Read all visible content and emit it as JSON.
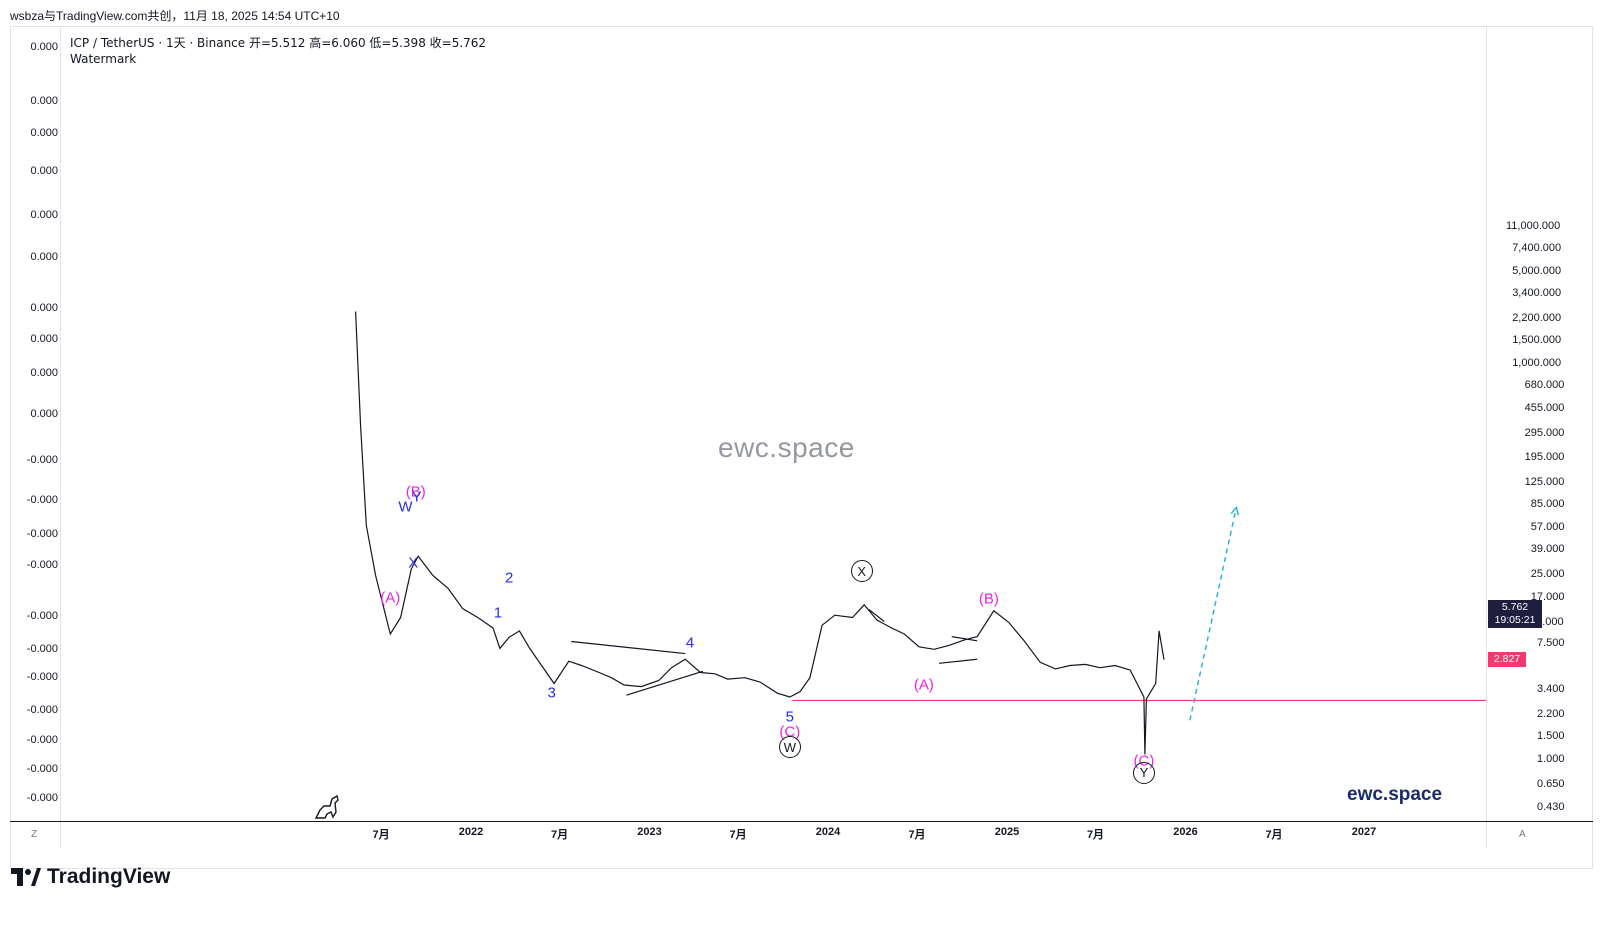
{
  "header": {
    "caption": "wsbza与TradingView.com共创，11月 18, 2025 14:54 UTC+10"
  },
  "legend": {
    "line1": "ICP / TetherUS · 1天 · Binance  开=5.512  高=6.060  低=5.398  收=5.762",
    "line2": "Watermark"
  },
  "chart_data": {
    "type": "line",
    "title": "ICP / TetherUS · 1天 · Binance",
    "scale": "log",
    "ohlc": {
      "open": 5.512,
      "high": 6.06,
      "low": 5.398,
      "close": 5.762
    },
    "left_axis_ticks": [
      "0.000",
      "0.000",
      "0.000",
      "0.000",
      "0.000",
      "0.000",
      "0.000",
      "0.000",
      "0.000",
      "0.000",
      "-0.000",
      "-0.000",
      "-0.000",
      "-0.000",
      "-0.000",
      "-0.000",
      "-0.000",
      "-0.000",
      "-0.000",
      "-0.000",
      "-0.000"
    ],
    "right_axis_ticks": [
      "11,000.000",
      "7,400.000",
      "5,000.000",
      "3,400.000",
      "2,200.000",
      "1,500.000",
      "1,000.000",
      "680.000",
      "455.000",
      "295.000",
      "195.000",
      "125.000",
      "85.000",
      "57.000",
      "39.000",
      "25.000",
      "17.000",
      "11.000",
      "7.500",
      "3.400",
      "2.200",
      "1.500",
      "1.000",
      "0.650",
      "0.430"
    ],
    "x_ticks": [
      "7月",
      "2022",
      "7月",
      "2023",
      "7月",
      "2024",
      "7月",
      "2025",
      "7月",
      "2026",
      "7月",
      "2027"
    ],
    "x": [
      "2021-05-10",
      "2021-05-20",
      "2021-06-01",
      "2021-06-20",
      "2021-07-20",
      "2021-08-10",
      "2021-09-01",
      "2021-09-15",
      "2021-10-15",
      "2021-11-15",
      "2021-12-15",
      "2022-01-15",
      "2022-02-15",
      "2022-03-01",
      "2022-03-20",
      "2022-04-10",
      "2022-05-01",
      "2022-06-01",
      "2022-06-20",
      "2022-07-20",
      "2022-08-15",
      "2022-09-20",
      "2022-10-15",
      "2022-11-10",
      "2022-12-15",
      "2023-01-20",
      "2023-02-15",
      "2023-03-15",
      "2023-04-15",
      "2023-05-15",
      "2023-06-10",
      "2023-07-15",
      "2023-08-15",
      "2023-09-20",
      "2023-10-15",
      "2023-11-05",
      "2023-11-25",
      "2023-12-20",
      "2024-01-15",
      "2024-02-20",
      "2024-03-15",
      "2024-04-10",
      "2024-05-10",
      "2024-06-05",
      "2024-07-05",
      "2024-08-05",
      "2024-09-05",
      "2024-10-05",
      "2024-11-01",
      "2024-12-05",
      "2025-01-05",
      "2025-02-05",
      "2025-03-10",
      "2025-04-10",
      "2025-05-10",
      "2025-06-10",
      "2025-07-10",
      "2025-08-10",
      "2025-09-10",
      "2025-10-08",
      "2025-10-10",
      "2025-10-13",
      "2025-10-20",
      "2025-11-01",
      "2025-11-08",
      "2025-11-18"
    ],
    "y": [
      2500,
      350,
      60,
      25,
      9,
      12,
      28,
      35,
      25,
      20,
      14,
      12,
      10,
      7,
      8.5,
      9.5,
      7,
      4.8,
      3.8,
      5.6,
      5.2,
      4.6,
      4.2,
      3.7,
      3.6,
      4.0,
      5.0,
      5.8,
      4.6,
      4.5,
      4.1,
      4.2,
      3.9,
      3.2,
      3.0,
      3.3,
      4.2,
      10.5,
      12.5,
      12.0,
      15.0,
      11.5,
      10.0,
      9.0,
      7.2,
      6.9,
      7.4,
      8.1,
      8.6,
      13.5,
      11,
      8,
      5.5,
      4.9,
      5.2,
      5.3,
      5.0,
      5.2,
      4.8,
      3.0,
      1.1,
      2.9,
      3.2,
      3.8,
      9.5,
      5.762
    ],
    "levels": [
      {
        "label": "2.827",
        "value": 2.827,
        "color": "#f23a6e"
      }
    ],
    "last_price": {
      "value": "5.762",
      "countdown": "19:05:21"
    },
    "projection": {
      "from": [
        "2026-01-10",
        2.0
      ],
      "to": [
        "2026-04-15",
        82
      ],
      "color": "#1fb2d8",
      "style": "dashed"
    },
    "wave_labels": [
      {
        "text": "(B)",
        "x": "2021-09-10",
        "y": 108,
        "color": "#ee22dd"
      },
      {
        "text": "W",
        "x": "2021-08-20",
        "y": 82,
        "color": "#2a2ee0"
      },
      {
        "text": "Y",
        "x": "2021-09-12",
        "y": 98,
        "color": "#2a2ee0"
      },
      {
        "text": "X",
        "x": "2021-09-05",
        "y": 31,
        "color": "#2a2ee0"
      },
      {
        "text": "(A)",
        "x": "2021-07-20",
        "y": 17,
        "color": "#ee22dd"
      },
      {
        "text": "2",
        "x": "2022-03-20",
        "y": 24,
        "color": "#2a2ee0"
      },
      {
        "text": "1",
        "x": "2022-02-25",
        "y": 13,
        "color": "#2a2ee0"
      },
      {
        "text": "3",
        "x": "2022-06-15",
        "y": 3.2,
        "color": "#2a2ee0"
      },
      {
        "text": "4",
        "x": "2023-03-25",
        "y": 7.7,
        "color": "#2a2ee0"
      },
      {
        "text": "5",
        "x": "2023-10-15",
        "y": 2.1,
        "color": "#2a2ee0"
      },
      {
        "text": "(C)",
        "x": "2023-10-15",
        "y": 1.62,
        "color": "#ee22dd"
      },
      {
        "text": "(A)",
        "x": "2024-07-15",
        "y": 3.7,
        "color": "#ee22dd"
      },
      {
        "text": "(B)",
        "x": "2024-11-25",
        "y": 16.5,
        "color": "#ee22dd"
      },
      {
        "text": "(C)",
        "x": "2025-10-08",
        "y": 0.98,
        "color": "#ee22dd"
      }
    ],
    "circle_labels": [
      {
        "text": "W",
        "x": "2023-10-15",
        "y": 1.25
      },
      {
        "text": "X",
        "x": "2024-03-10",
        "y": 27
      },
      {
        "text": "Y",
        "x": "2025-10-08",
        "y": 0.8
      }
    ],
    "trendlines": [
      {
        "from": [
          "2022-07-25",
          7.9
        ],
        "to": [
          "2023-03-15",
          6.4
        ]
      },
      {
        "from": [
          "2022-11-15",
          3.1
        ],
        "to": [
          "2023-04-20",
          4.7
        ]
      },
      {
        "from": [
          "2024-03-25",
          13.8
        ],
        "to": [
          "2024-04-25",
          11.2
        ]
      },
      {
        "from": [
          "2024-09-10",
          8.6
        ],
        "to": [
          "2024-11-01",
          8.0
        ]
      },
      {
        "from": [
          "2024-08-15",
          5.4
        ],
        "to": [
          "2024-11-01",
          5.8
        ]
      }
    ]
  },
  "watermarks": {
    "center": "ewc.space",
    "brand": "ewc.space"
  },
  "corners": {
    "bottom_left": "Z",
    "bottom_right": "A"
  },
  "footer": {
    "brand": "TradingView"
  },
  "colors": {
    "price_line": "#131722",
    "level": "#f23a6e",
    "projection": "#1fb2d8",
    "wave_blue": "#2a2ee0",
    "wave_magenta": "#ee22dd"
  }
}
